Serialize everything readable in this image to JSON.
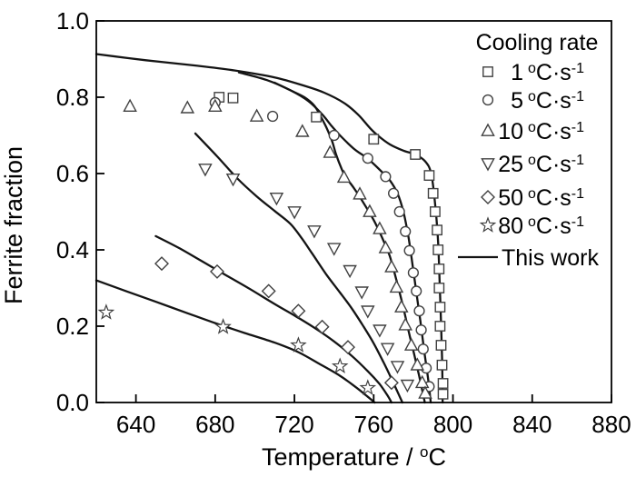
{
  "page": {
    "background": "#ffffff"
  },
  "chart_data": {
    "type": "scatter+line",
    "title": "",
    "xlabel_parts": {
      "prefix": "Temperature / ",
      "sup": "o",
      "suffix": "C"
    },
    "ylabel": "Ferrite fraction",
    "xlim": [
      620,
      880
    ],
    "ylim": [
      0.0,
      1.0
    ],
    "xticks": [
      640,
      680,
      720,
      760,
      800,
      840,
      880
    ],
    "yticks": [
      0.0,
      0.2,
      0.4,
      0.6,
      0.8,
      1.0
    ],
    "ytick_labels": [
      "0.0",
      "0.2",
      "0.4",
      "0.6",
      "0.8",
      "1.0"
    ],
    "grid": false,
    "legend": {
      "title": "Cooling rate",
      "position": "inside-top-right",
      "unit": {
        "sup_pre": "o",
        "mid": "C·s",
        "sup_post": "-1"
      },
      "line_label": "This work"
    },
    "colors": {
      "line": "#141414",
      "marker": "#404040",
      "text": "#000000",
      "background": "#ffffff"
    },
    "series": [
      {
        "name": "1",
        "rate_label": "1",
        "marker": "square",
        "points": [
          [
            682,
            0.8
          ],
          [
            689,
            0.798
          ],
          [
            731,
            0.748
          ],
          [
            760,
            0.69
          ],
          [
            781,
            0.65
          ],
          [
            788,
            0.595
          ],
          [
            790,
            0.548
          ],
          [
            791,
            0.5
          ],
          [
            792,
            0.452
          ],
          [
            792.5,
            0.4
          ],
          [
            793,
            0.35
          ],
          [
            793,
            0.3
          ],
          [
            793.5,
            0.25
          ],
          [
            793.5,
            0.2
          ],
          [
            794,
            0.15
          ],
          [
            794.5,
            0.098
          ],
          [
            795,
            0.05
          ],
          [
            795,
            0.022
          ]
        ],
        "this_work_line": [
          [
            620,
            0.913
          ],
          [
            645,
            0.897
          ],
          [
            670,
            0.883
          ],
          [
            690,
            0.87
          ],
          [
            710,
            0.852
          ],
          [
            725,
            0.83
          ],
          [
            735,
            0.812
          ],
          [
            745,
            0.785
          ],
          [
            752,
            0.755
          ],
          [
            758,
            0.72
          ],
          [
            762,
            0.7
          ],
          [
            768,
            0.677
          ],
          [
            775,
            0.66
          ],
          [
            781,
            0.65
          ],
          [
            786,
            0.632
          ],
          [
            789,
            0.6
          ],
          [
            791,
            0.52
          ],
          [
            792.5,
            0.42
          ],
          [
            793.5,
            0.28
          ],
          [
            794.5,
            0.12
          ],
          [
            794.8,
            0.0
          ]
        ]
      },
      {
        "name": "5",
        "rate_label": "5",
        "marker": "circle",
        "points": [
          [
            680,
            0.786
          ],
          [
            709,
            0.75
          ],
          [
            740,
            0.7
          ],
          [
            757,
            0.64
          ],
          [
            766,
            0.592
          ],
          [
            770,
            0.548
          ],
          [
            773,
            0.5
          ],
          [
            776,
            0.448
          ],
          [
            778,
            0.398
          ],
          [
            780,
            0.34
          ],
          [
            781.5,
            0.292
          ],
          [
            783,
            0.24
          ],
          [
            784,
            0.19
          ],
          [
            785,
            0.14
          ],
          [
            786.5,
            0.09
          ],
          [
            788,
            0.042
          ]
        ],
        "this_work_line": [
          [
            692,
            0.865
          ],
          [
            706,
            0.845
          ],
          [
            718,
            0.818
          ],
          [
            727,
            0.79
          ],
          [
            734,
            0.755
          ],
          [
            739,
            0.723
          ],
          [
            743,
            0.7
          ],
          [
            750,
            0.665
          ],
          [
            757,
            0.639
          ],
          [
            763,
            0.61
          ],
          [
            768,
            0.583
          ],
          [
            772,
            0.548
          ],
          [
            775,
            0.5
          ],
          [
            777.5,
            0.435
          ],
          [
            779.5,
            0.365
          ],
          [
            781.5,
            0.29
          ],
          [
            783.5,
            0.215
          ],
          [
            785.5,
            0.135
          ],
          [
            787.5,
            0.06
          ],
          [
            788.8,
            0.0
          ]
        ]
      },
      {
        "name": "10",
        "rate_label": "10",
        "marker": "triangle-up",
        "points": [
          [
            637,
            0.776
          ],
          [
            666,
            0.772
          ],
          [
            680,
            0.776
          ],
          [
            701,
            0.75
          ],
          [
            724,
            0.71
          ],
          [
            738,
            0.655
          ],
          [
            745,
            0.59
          ],
          [
            753,
            0.546
          ],
          [
            758,
            0.5
          ],
          [
            763,
            0.455
          ],
          [
            766,
            0.405
          ],
          [
            769,
            0.355
          ],
          [
            771.5,
            0.302
          ],
          [
            774,
            0.25
          ],
          [
            776,
            0.203
          ],
          [
            779,
            0.15
          ],
          [
            782,
            0.098
          ],
          [
            784.5,
            0.052
          ],
          [
            786,
            0.024
          ]
        ],
        "this_work_line": [
          [
            710,
            0.838
          ],
          [
            718,
            0.818
          ],
          [
            725,
            0.8
          ],
          [
            730,
            0.778
          ],
          [
            733,
            0.752
          ],
          [
            736,
            0.722
          ],
          [
            739,
            0.685
          ],
          [
            741,
            0.65
          ],
          [
            744,
            0.61
          ],
          [
            746,
            0.59
          ],
          [
            750,
            0.562
          ],
          [
            755,
            0.522
          ],
          [
            760,
            0.478
          ],
          [
            764,
            0.435
          ],
          [
            768,
            0.385
          ],
          [
            771,
            0.33
          ],
          [
            773.5,
            0.28
          ],
          [
            776,
            0.225
          ],
          [
            778,
            0.178
          ],
          [
            780.5,
            0.125
          ],
          [
            783,
            0.068
          ],
          [
            785,
            0.02
          ],
          [
            785.8,
            0.0
          ]
        ]
      },
      {
        "name": "25",
        "rate_label": "25",
        "marker": "triangle-down",
        "points": [
          [
            675,
            0.612
          ],
          [
            689,
            0.586
          ],
          [
            711,
            0.536
          ],
          [
            720,
            0.5
          ],
          [
            730,
            0.45
          ],
          [
            740,
            0.404
          ],
          [
            748,
            0.346
          ],
          [
            754,
            0.29
          ],
          [
            757,
            0.24
          ],
          [
            763,
            0.19
          ],
          [
            767,
            0.142
          ],
          [
            772,
            0.095
          ],
          [
            777,
            0.046
          ]
        ],
        "this_work_line": [
          [
            670,
            0.705
          ],
          [
            681,
            0.645
          ],
          [
            691,
            0.588
          ],
          [
            701,
            0.54
          ],
          [
            710,
            0.502
          ],
          [
            718,
            0.468
          ],
          [
            724,
            0.428
          ],
          [
            729,
            0.39
          ],
          [
            736,
            0.336
          ],
          [
            743,
            0.288
          ],
          [
            749,
            0.246
          ],
          [
            755,
            0.198
          ],
          [
            760,
            0.155
          ],
          [
            765,
            0.105
          ],
          [
            769,
            0.062
          ],
          [
            772,
            0.028
          ],
          [
            774.5,
            0.0
          ]
        ]
      },
      {
        "name": "50",
        "rate_label": "50",
        "marker": "diamond",
        "points": [
          [
            653,
            0.364
          ],
          [
            681,
            0.343
          ],
          [
            707,
            0.292
          ],
          [
            722,
            0.24
          ],
          [
            734,
            0.198
          ],
          [
            747,
            0.145
          ],
          [
            769,
            0.052
          ]
        ],
        "this_work_line": [
          [
            650,
            0.436
          ],
          [
            662,
            0.404
          ],
          [
            674,
            0.368
          ],
          [
            686,
            0.332
          ],
          [
            698,
            0.296
          ],
          [
            710,
            0.258
          ],
          [
            720,
            0.228
          ],
          [
            730,
            0.196
          ],
          [
            740,
            0.16
          ],
          [
            749,
            0.122
          ],
          [
            757,
            0.082
          ],
          [
            763,
            0.048
          ],
          [
            767,
            0.018
          ],
          [
            769,
            0.0
          ]
        ]
      },
      {
        "name": "80",
        "rate_label": "80",
        "marker": "star",
        "points": [
          [
            625,
            0.236
          ],
          [
            684,
            0.198
          ],
          [
            722,
            0.15
          ],
          [
            743,
            0.095
          ],
          [
            757,
            0.038
          ]
        ],
        "this_work_line": [
          [
            620,
            0.32
          ],
          [
            635,
            0.292
          ],
          [
            650,
            0.264
          ],
          [
            665,
            0.236
          ],
          [
            680,
            0.208
          ],
          [
            695,
            0.182
          ],
          [
            710,
            0.157
          ],
          [
            722,
            0.132
          ],
          [
            733,
            0.1
          ],
          [
            743,
            0.07
          ],
          [
            751,
            0.04
          ],
          [
            757,
            0.015
          ],
          [
            760.5,
            0.0
          ]
        ]
      }
    ]
  }
}
